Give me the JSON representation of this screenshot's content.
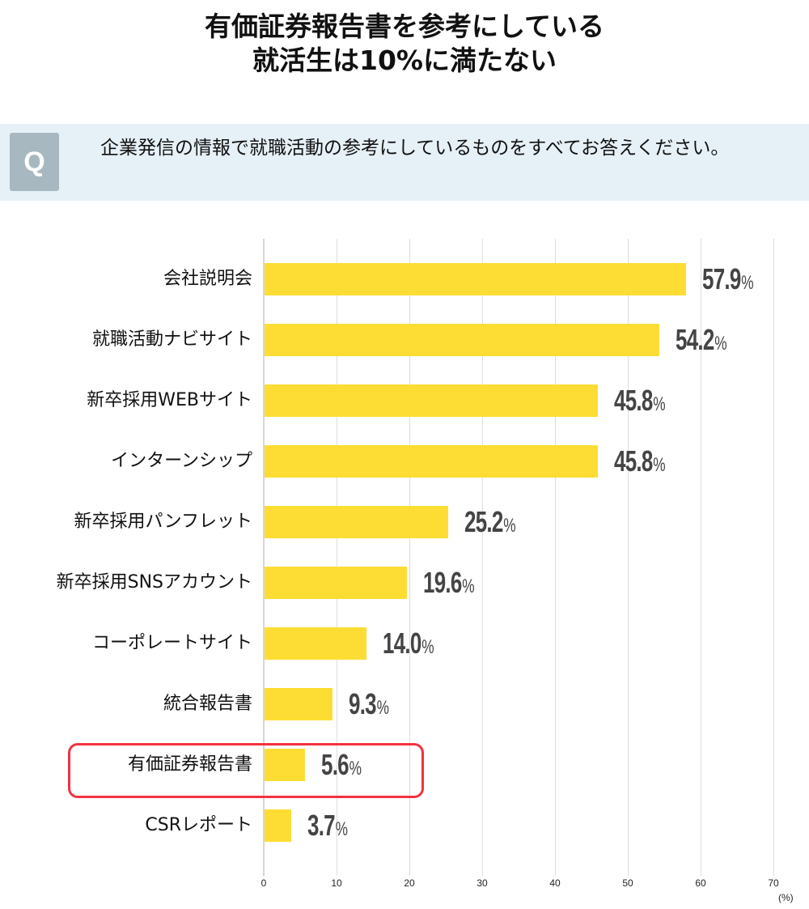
{
  "title": {
    "line1": "有価証券報告書を参考にしている",
    "line2": "就活生は10%に満たない"
  },
  "question": {
    "badge": "Q",
    "text": "企業発信の情報で就職活動の参考にしているものをすべてお答えください。"
  },
  "colors": {
    "bar": "#fddd33",
    "highlight_border": "#f2323f",
    "question_band": "#e6f0f7",
    "question_badge": "#a8b8c0",
    "value_text": "#444444"
  },
  "chart_data": {
    "type": "bar",
    "orientation": "horizontal",
    "title": "有価証券報告書を参考にしている就活生は10%に満たない",
    "subtitle": "企業発信の情報で就職活動の参考にしているものをすべてお答えください。",
    "categories": [
      "会社説明会",
      "就職活動ナビサイト",
      "新卒採用WEBサイト",
      "インターンシップ",
      "新卒採用パンフレット",
      "新卒採用SNSアカウント",
      "コーポレートサイト",
      "統合報告書",
      "有価証券報告書",
      "CSRレポート"
    ],
    "values": [
      57.9,
      54.2,
      45.8,
      45.8,
      25.2,
      19.6,
      14.0,
      9.3,
      5.6,
      3.7
    ],
    "value_labels": [
      "57.9",
      "54.2",
      "45.8",
      "45.8",
      "25.2",
      "19.6",
      "14.0",
      "9.3",
      "5.6",
      "3.7"
    ],
    "value_suffix": "%",
    "xlabel": "(%)",
    "ylabel": "",
    "xlim": [
      0,
      70
    ],
    "xticks": [
      "0",
      "10",
      "20",
      "30",
      "40",
      "50",
      "60",
      "70"
    ],
    "grid": true,
    "legend": null,
    "highlighted_category": "有価証券報告書"
  }
}
